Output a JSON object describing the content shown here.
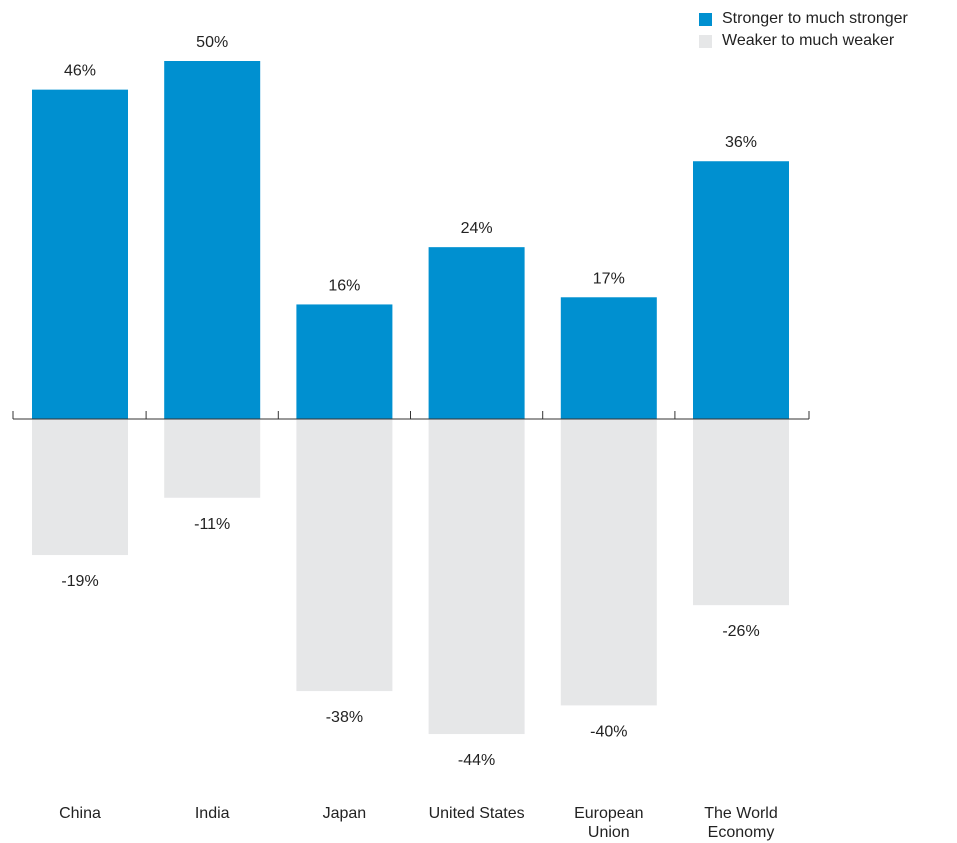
{
  "chart_data": {
    "type": "bar",
    "categories": [
      [
        "China"
      ],
      [
        "India"
      ],
      [
        "Japan"
      ],
      [
        "United States"
      ],
      [
        "European",
        "Union"
      ],
      [
        "The World",
        "Economy"
      ]
    ],
    "series": [
      {
        "name": "Stronger to much stronger",
        "color": "#0090d0",
        "values": [
          46,
          50,
          16,
          24,
          17,
          36
        ],
        "labels": [
          "46%",
          "50%",
          "16%",
          "24%",
          "17%",
          "36%"
        ]
      },
      {
        "name": "Weaker to much weaker",
        "color": "#e6e7e8",
        "values": [
          -19,
          -11,
          -38,
          -44,
          -40,
          -26
        ],
        "labels": [
          "-19%",
          "-11%",
          "-38%",
          "-44%",
          "-40%",
          "-26%"
        ]
      }
    ],
    "legend_position": "top-right",
    "grid": false
  }
}
